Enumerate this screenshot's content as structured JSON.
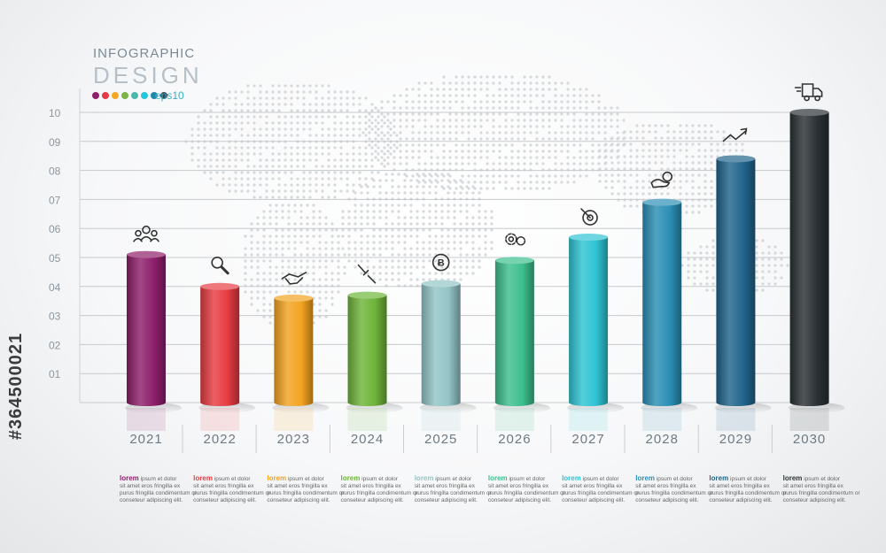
{
  "header": {
    "line1": "INFOGRAPHIC",
    "line2": "DESIGN",
    "line3": "eps10",
    "dot_colors": [
      "#8e1f6b",
      "#e63946",
      "#f5a623",
      "#7cb342",
      "#4db6ac",
      "#26c6da",
      "#1e88a8",
      "#37474f"
    ]
  },
  "watermark": {
    "id_text": "#364500021"
  },
  "chart_data": {
    "type": "bar",
    "categories": [
      "2021",
      "2022",
      "2023",
      "2024",
      "2025",
      "2026",
      "2027",
      "2028",
      "2029",
      "2030"
    ],
    "values": [
      5.1,
      4.0,
      3.6,
      3.7,
      4.1,
      4.9,
      5.7,
      6.9,
      8.4,
      10.0
    ],
    "colors": [
      "#8e1f6b",
      "#e63c42",
      "#f3a321",
      "#6fb43a",
      "#93c4c6",
      "#3dbf8e",
      "#2ec4d3",
      "#2b8fb5",
      "#21648c",
      "#2b3135"
    ],
    "yticks": [
      "10",
      "09",
      "08",
      "07",
      "06",
      "05",
      "04",
      "03",
      "02",
      "01"
    ],
    "ylim": [
      0,
      10
    ],
    "grid": true,
    "icons": [
      "people-network-icon",
      "magnifier-icon",
      "handshake-icon",
      "plug-icon",
      "bitcoin-icon",
      "gears-icon",
      "target-icon",
      "money-hand-icon",
      "trend-arrow-icon",
      "delivery-truck-icon"
    ],
    "captions": [
      {
        "line1a": "lorem",
        "line1b": " ipsum et dolor",
        "line2": "sit amet eros fringilla ex",
        "line3": "purus fringilla condimentum or",
        "line4": "conseteur adipiscing elit."
      },
      {
        "line1a": "lorem",
        "line1b": " ipsum et dolor",
        "line2": "sit amet eros fringilla ex",
        "line3": "purus fringilla condimentum or",
        "line4": "conseteur adipiscing elit."
      },
      {
        "line1a": "lorem",
        "line1b": " ipsum et dolor",
        "line2": "sit amet eros fringilla ex",
        "line3": "purus fringilla condimentum or",
        "line4": "conseteur adipiscing elit."
      },
      {
        "line1a": "lorem",
        "line1b": " ipsum et dolor",
        "line2": "sit amet eros fringilla ex",
        "line3": "purus fringilla condimentum or",
        "line4": "conseteur adipiscing elit."
      },
      {
        "line1a": "lorem",
        "line1b": " ipsum et dolor",
        "line2": "sit amet eros fringilla ex",
        "line3": "purus fringilla condimentum or",
        "line4": "conseteur adipiscing elit."
      },
      {
        "line1a": "lorem",
        "line1b": " ipsum et dolor",
        "line2": "sit amet eros fringilla ex",
        "line3": "purus fringilla condimentum or",
        "line4": "conseteur adipiscing elit."
      },
      {
        "line1a": "lorem",
        "line1b": " ipsum et dolor",
        "line2": "sit amet eros fringilla ex",
        "line3": "purus fringilla condimentum or",
        "line4": "conseteur adipiscing elit."
      },
      {
        "line1a": "lorem",
        "line1b": " ipsum et dolor",
        "line2": "sit amet eros fringilla ex",
        "line3": "purus fringilla condimentum or",
        "line4": "conseteur adipiscing elit."
      },
      {
        "line1a": "lorem",
        "line1b": " ipsum et dolor",
        "line2": "sit amet eros fringilla ex",
        "line3": "purus fringilla condimentum or",
        "line4": "conseteur adipiscing elit."
      },
      {
        "line1a": "lorem",
        "line1b": " ipsum et dolor",
        "line2": "sit amet eros fringilla ex",
        "line3": "purus fringilla condimentum or",
        "line4": "conseteur adipiscing elit."
      }
    ]
  }
}
